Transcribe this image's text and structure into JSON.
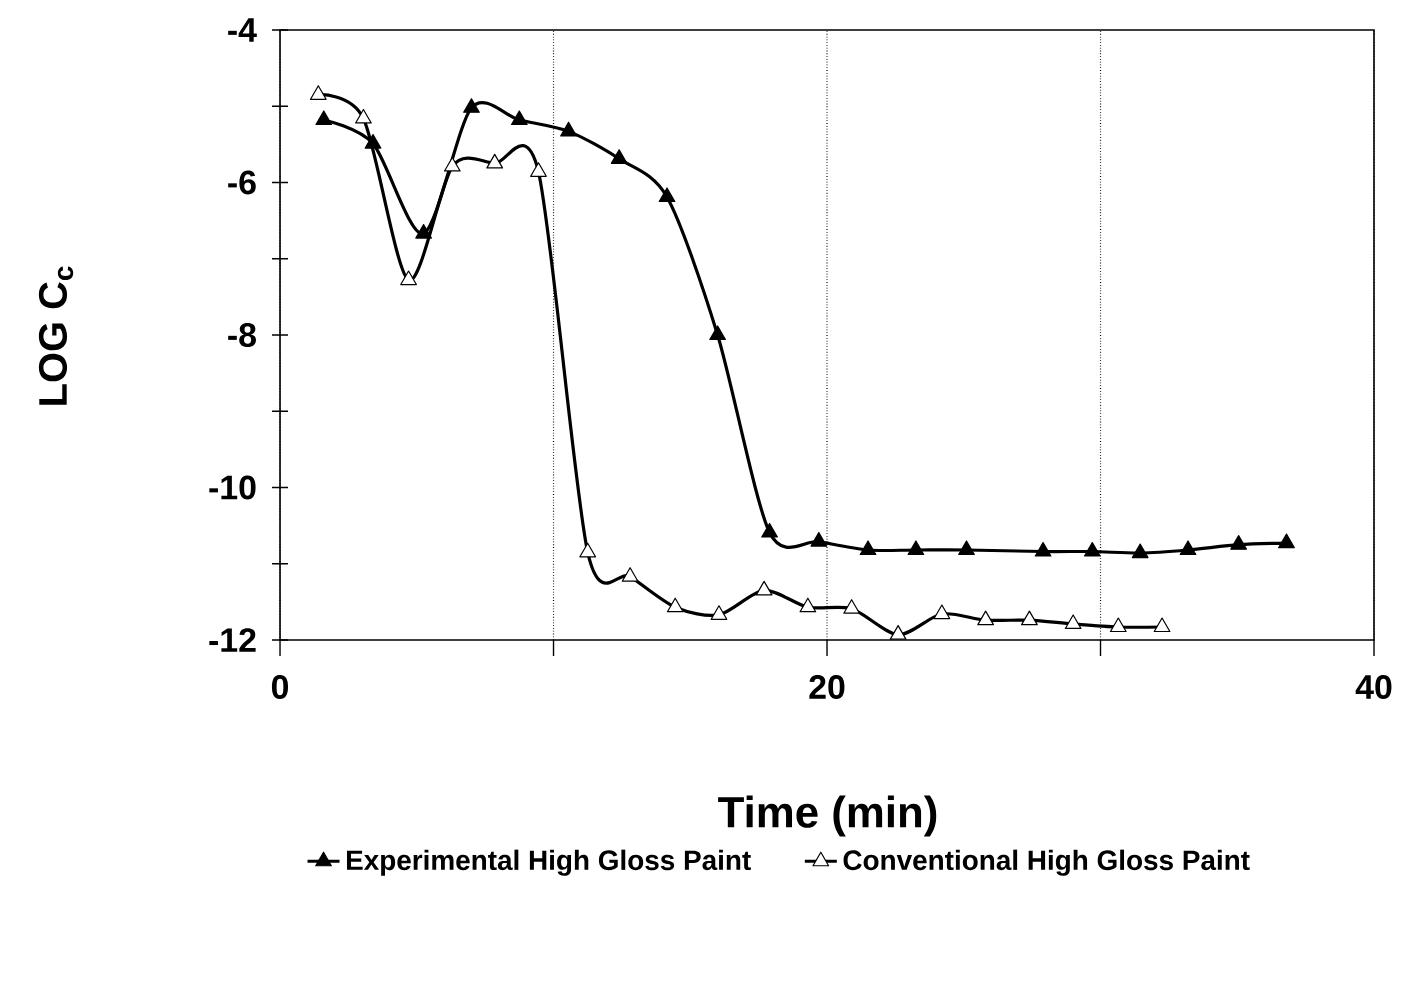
{
  "chart_data": {
    "type": "line",
    "xlabel": "Time (min)",
    "ylabel": "LOG C$_{c}$",
    "xlim": [
      0,
      40
    ],
    "ylim": [
      -12,
      -4
    ],
    "xticks": [
      0,
      {
        "value": 10,
        "label": null
      },
      20,
      {
        "value": 30,
        "label": null
      },
      40
    ],
    "yticks": [
      -12,
      {
        "value": -11,
        "label": null
      },
      -10,
      {
        "value": -9,
        "label": null
      },
      -8,
      {
        "value": -7,
        "label": null
      },
      -6,
      {
        "value": -5,
        "label": null
      },
      -4
    ],
    "grid": "x",
    "legend": "bottom",
    "marker": "triangle",
    "line_style": "solid",
    "series": [
      {
        "name": "Experimental High Gloss Paint",
        "color": "#000000",
        "x": [
          1.6,
          3.4,
          5.25,
          7.0,
          8.75,
          10.55,
          12.4,
          14.15,
          16.0,
          17.9,
          19.7,
          21.5,
          23.25,
          25.1,
          27.9,
          29.7,
          31.45,
          33.2,
          35.05,
          36.8
        ],
        "values": [
          -5.18,
          -5.49,
          -6.67,
          -5.02,
          -5.18,
          -5.33,
          -5.69,
          -6.19,
          -8.0,
          -10.59,
          -10.71,
          -10.82,
          -10.82,
          -10.82,
          -10.84,
          -10.84,
          -10.86,
          -10.82,
          -10.75,
          -10.73
        ]
      },
      {
        "name": "Conventional High Gloss Paint",
        "color": "#000000",
        "x": [
          1.4,
          3.05,
          4.7,
          6.3,
          7.85,
          9.45,
          11.25,
          12.8,
          14.45,
          16.05,
          17.7,
          19.3,
          20.9,
          22.6,
          24.2,
          25.8,
          27.4,
          29.0,
          30.65,
          32.25
        ],
        "values": [
          -4.85,
          -5.16,
          -7.28,
          -5.79,
          -5.75,
          -5.86,
          -10.85,
          -11.17,
          -11.57,
          -11.67,
          -11.35,
          -11.57,
          -11.59,
          -11.93,
          -11.66,
          -11.74,
          -11.74,
          -11.79,
          -11.83,
          -11.83
        ]
      }
    ]
  }
}
